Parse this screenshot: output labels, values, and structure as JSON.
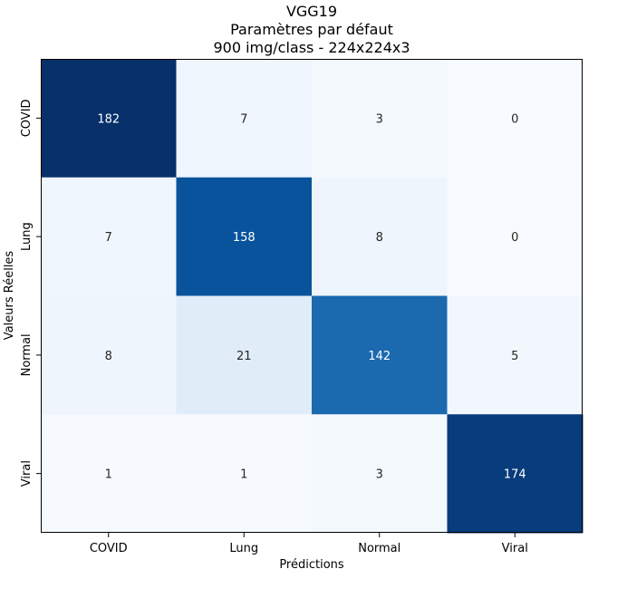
{
  "chart_data": {
    "type": "heatmap",
    "title": [
      "VGG19",
      "Paramètres par défaut",
      "900 img/class - 224x224x3"
    ],
    "xlabel": "Prédictions",
    "ylabel": "Valeurs Réelles",
    "x_categories": [
      "COVID",
      "Lung",
      "Normal",
      "Viral"
    ],
    "y_categories": [
      "COVID",
      "Lung",
      "Normal",
      "Viral"
    ],
    "values": [
      [
        182,
        7,
        3,
        0
      ],
      [
        7,
        158,
        8,
        0
      ],
      [
        8,
        21,
        142,
        5
      ],
      [
        1,
        1,
        3,
        174
      ]
    ],
    "colormap": "Blues",
    "colorbar": false,
    "grid": false
  }
}
